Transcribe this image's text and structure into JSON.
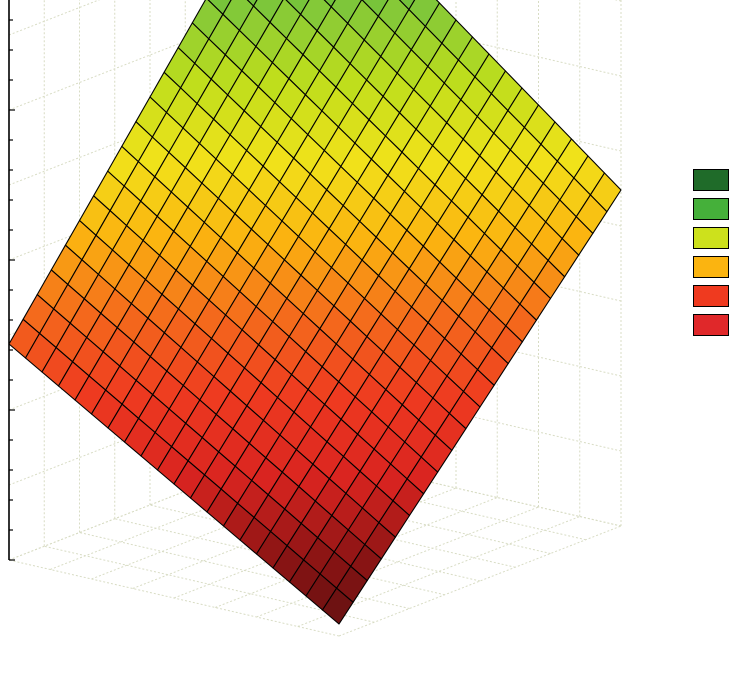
{
  "chart_data": {
    "type": "surface3d",
    "title": "",
    "xlabel": "",
    "ylabel": "",
    "zlabel": "",
    "grid": true,
    "legend_placement": "right",
    "grid_resolution": [
      20,
      20
    ],
    "z_range": [
      0,
      1
    ],
    "surface_corners_z": {
      "u0_v0": 0.02,
      "u1_v0": 0.36,
      "u0_v1": 0.56,
      "u1_v1": 1.0
    },
    "legend": [
      {
        "color": "#1f6b29",
        "label": ""
      },
      {
        "color": "#45b03a",
        "label": ""
      },
      {
        "color": "#cde11c",
        "label": ""
      },
      {
        "color": "#fbb410",
        "label": ""
      },
      {
        "color": "#ef3a1f",
        "label": ""
      },
      {
        "color": "#e0282a",
        "label": ""
      }
    ],
    "colormap": [
      {
        "z": 0.0,
        "color": "#5a1010"
      },
      {
        "z": 0.1,
        "color": "#8a1414"
      },
      {
        "z": 0.2,
        "color": "#d92420"
      },
      {
        "z": 0.3,
        "color": "#ee3a20"
      },
      {
        "z": 0.4,
        "color": "#f46a1c"
      },
      {
        "z": 0.5,
        "color": "#fbb410"
      },
      {
        "z": 0.6,
        "color": "#f1e21a"
      },
      {
        "z": 0.7,
        "color": "#bfde1c"
      },
      {
        "z": 0.8,
        "color": "#7fc73a"
      },
      {
        "z": 0.9,
        "color": "#45b03a"
      },
      {
        "z": 1.0,
        "color": "#1f6b29"
      }
    ]
  }
}
